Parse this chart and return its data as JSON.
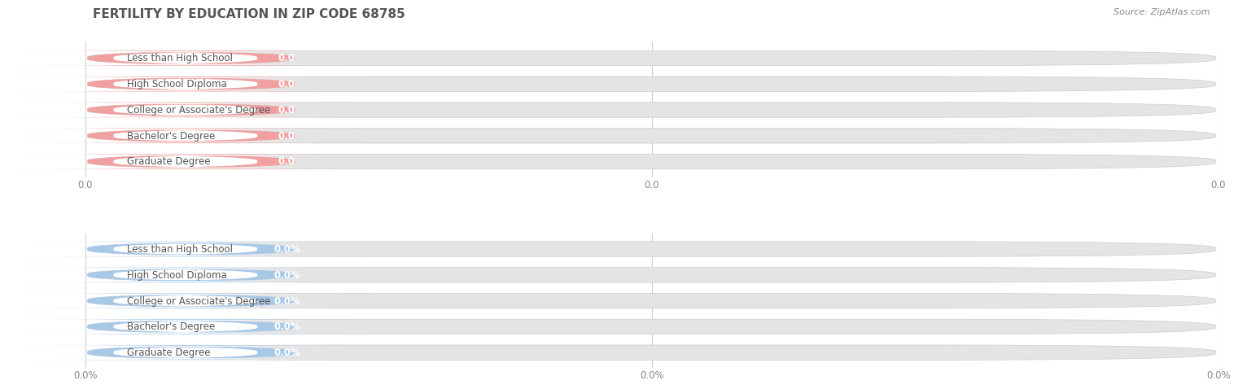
{
  "title": "FERTILITY BY EDUCATION IN ZIP CODE 68785",
  "source": "Source: ZipAtlas.com",
  "categories": [
    "Less than High School",
    "High School Diploma",
    "College or Associate's Degree",
    "Bachelor's Degree",
    "Graduate Degree"
  ],
  "top_values": [
    0.0,
    0.0,
    0.0,
    0.0,
    0.0
  ],
  "bottom_values": [
    0.0,
    0.0,
    0.0,
    0.0,
    0.0
  ],
  "top_color": "#f0a0a0",
  "bottom_color": "#a8c8e8",
  "bar_bg_color": "#e4e4e4",
  "top_tick_labels": [
    "0.0",
    "0.0",
    "0.0"
  ],
  "bottom_tick_labels": [
    "0.0%",
    "0.0%",
    "0.0%"
  ],
  "background_color": "#ffffff",
  "title_fontsize": 11,
  "label_fontsize": 8.5,
  "value_fontsize": 8.5
}
